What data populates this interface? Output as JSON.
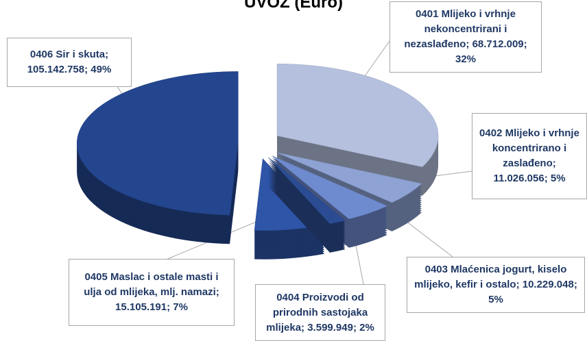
{
  "chart_data": {
    "type": "pie3d",
    "title": "UVOZ (Euro)",
    "categories": [
      "0401 Mlijeko i vrhnje nekoncentrirani i nezaslađeno",
      "0402 Mlijeko i vrhnje koncentrirano i zaslađeno",
      "0403 Mlaćenica jogurt, kiselo mlijeko, kefir i ostalo",
      "0404 Proizvodi od prirodnih sastojaka mlijeka",
      "0405 Maslac i ostale masti i ulja od mlijeka, mlj. namazi",
      "0406 Sir i skuta"
    ],
    "values": [
      68712009,
      11026056,
      10229048,
      3599949,
      15105191,
      105142758
    ],
    "value_labels": [
      "68.712.009",
      "11.026.056",
      "10.229.048",
      "3.599.949",
      "15.105.191",
      "105.142.758"
    ],
    "percent_labels": [
      "32%",
      "5%",
      "5%",
      "2%",
      "7%",
      "49%"
    ],
    "label_separator": "; ",
    "colors": [
      "#b4c0de",
      "#8ea3d4",
      "#6f8bcf",
      "#2b4c93",
      "#2e55a8",
      "#24468f"
    ]
  }
}
